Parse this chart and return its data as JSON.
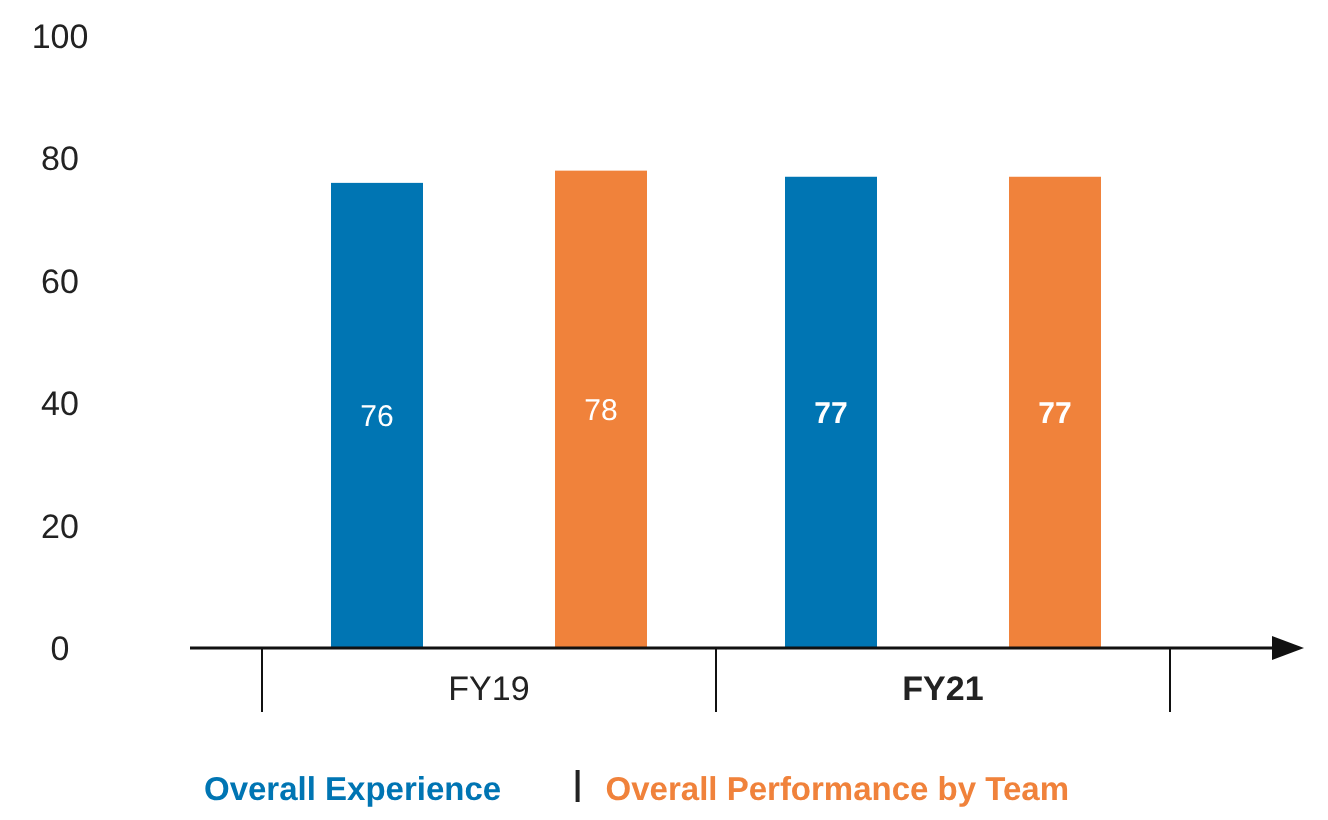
{
  "chart_data": {
    "type": "bar",
    "categories": [
      "FY19",
      "FY21"
    ],
    "series": [
      {
        "name": "Overall Experience",
        "color": "#0075b3",
        "values": [
          76,
          77
        ]
      },
      {
        "name": "Overall Performance by Team",
        "color": "#f0823b",
        "values": [
          78,
          77
        ]
      }
    ],
    "ylim": [
      0,
      100
    ],
    "yticks": [
      0,
      20,
      40,
      60,
      80,
      100
    ],
    "grid": false,
    "legend": "bottom",
    "data_labels": true
  }
}
